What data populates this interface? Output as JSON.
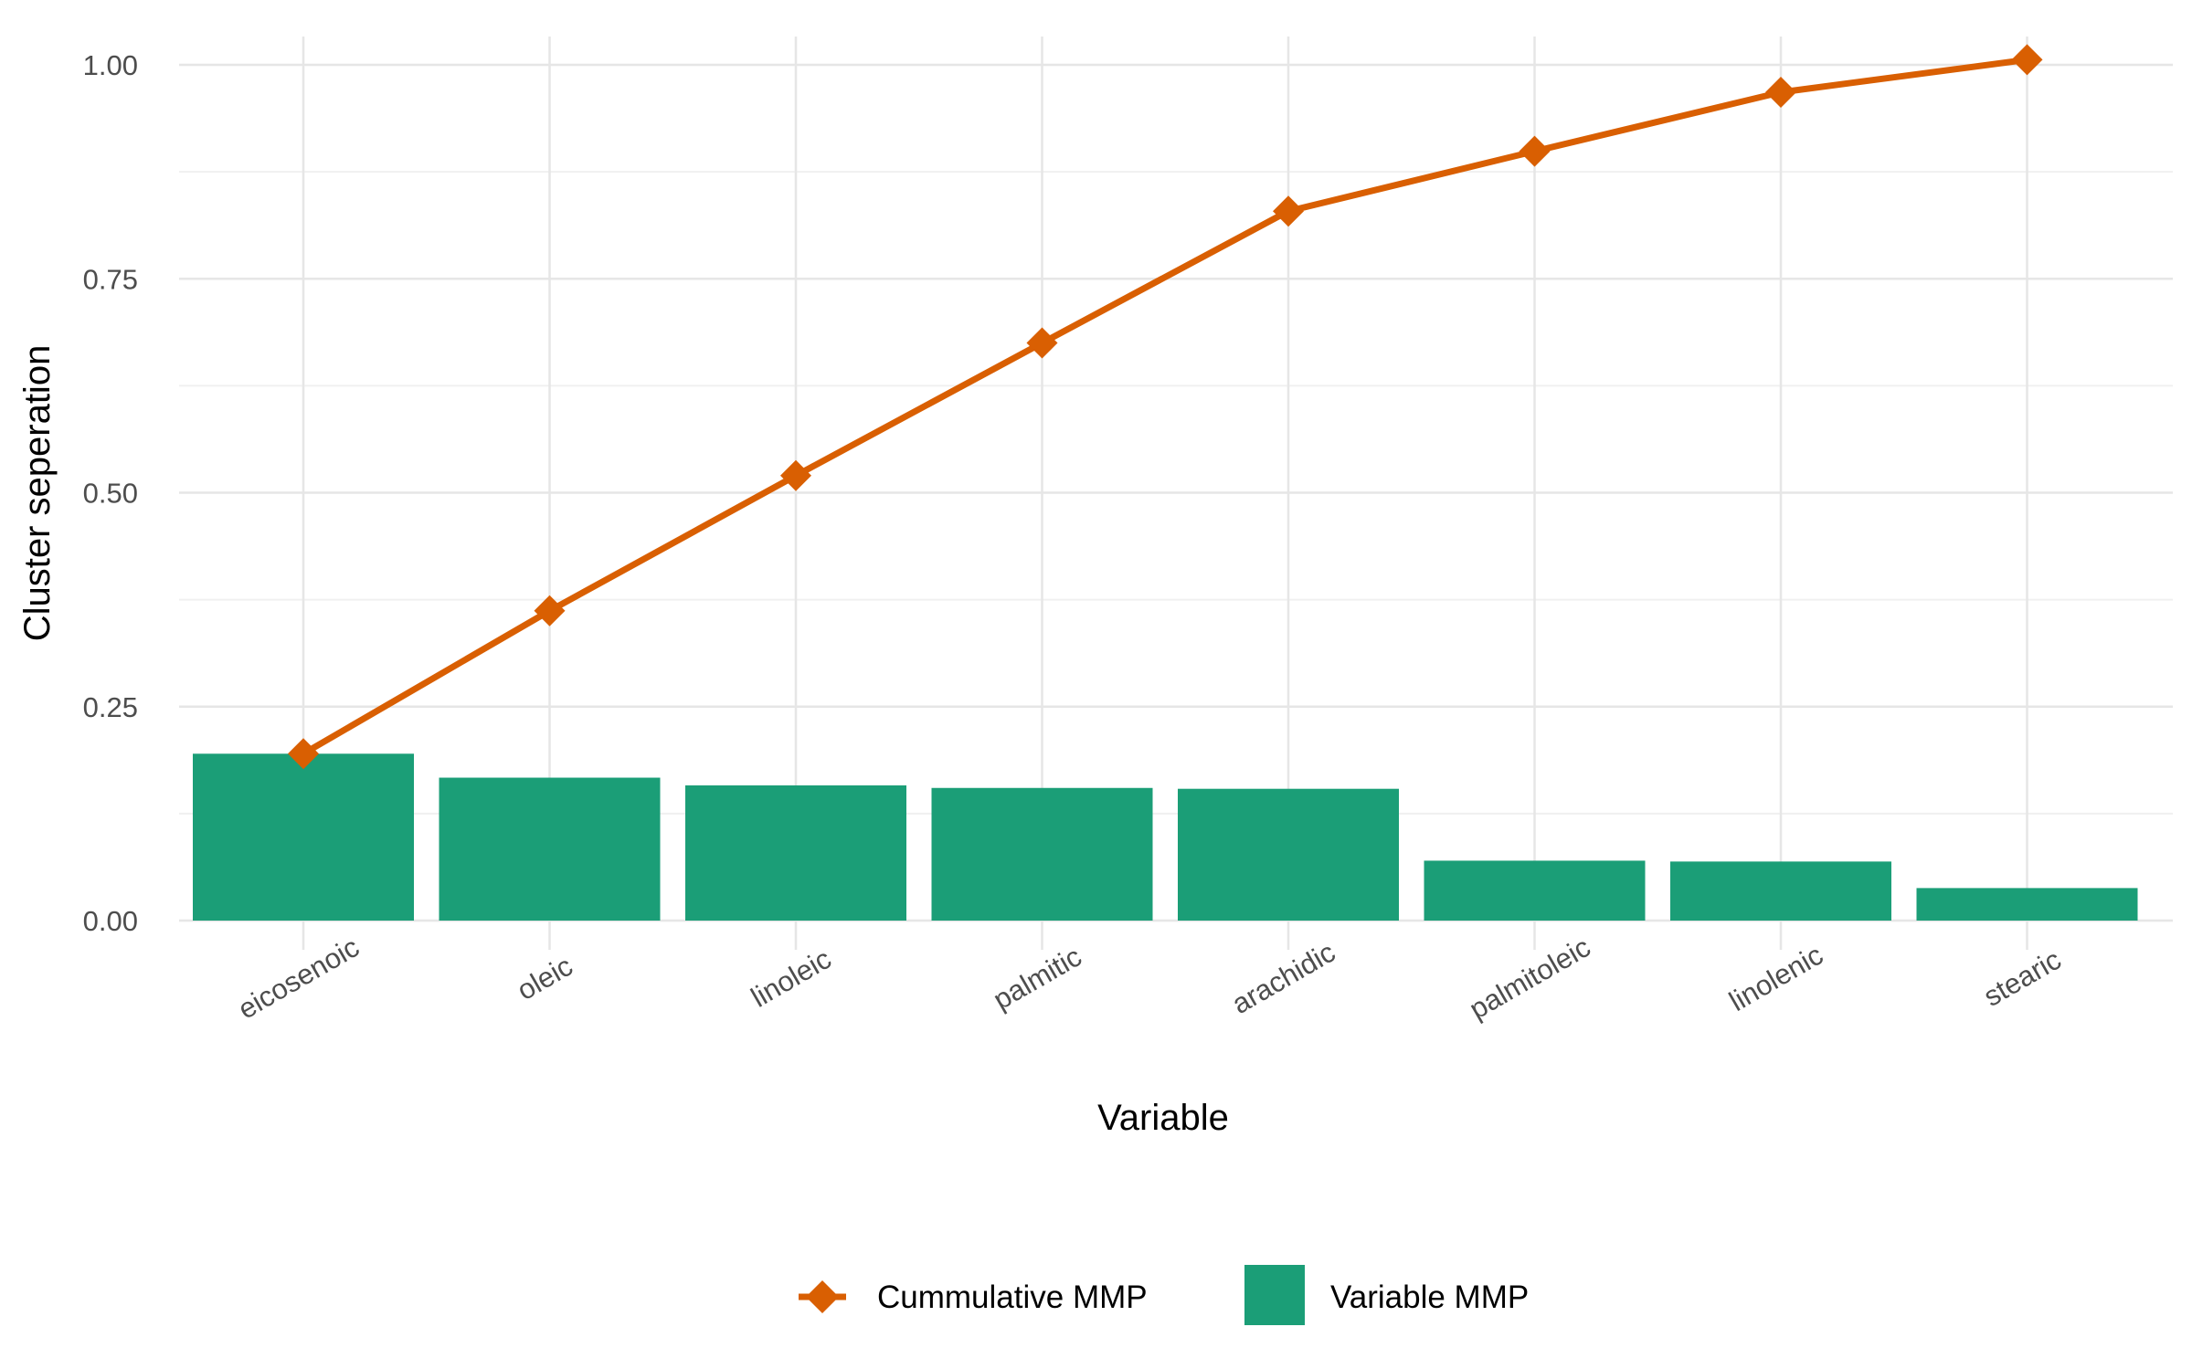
{
  "chart_data": {
    "type": "bar",
    "title": "",
    "xlabel": "Variable",
    "ylabel": "Cluster seperation",
    "ylim": [
      0,
      1.0
    ],
    "y_ticks": [
      "0.00",
      "0.25",
      "0.50",
      "0.75",
      "1.00"
    ],
    "y_tick_values": [
      0,
      0.25,
      0.5,
      0.75,
      1.0
    ],
    "categories": [
      "eicosenoic",
      "oleic",
      "linoleic",
      "palmitic",
      "arachidic",
      "palmitoleic",
      "linolenic",
      "stearic"
    ],
    "grid": true,
    "legend_position": "bottom",
    "series": [
      {
        "name": "Variable MMP",
        "kind": "bar",
        "color": "#1b9e77",
        "values": [
          0.195,
          0.167,
          0.158,
          0.155,
          0.154,
          0.07,
          0.069,
          0.038
        ]
      },
      {
        "name": "Cummulative MMP",
        "kind": "line",
        "marker": "diamond",
        "color": "#d95f02",
        "values": [
          0.195,
          0.362,
          0.52,
          0.675,
          0.829,
          0.899,
          0.968,
          1.006
        ]
      }
    ]
  }
}
